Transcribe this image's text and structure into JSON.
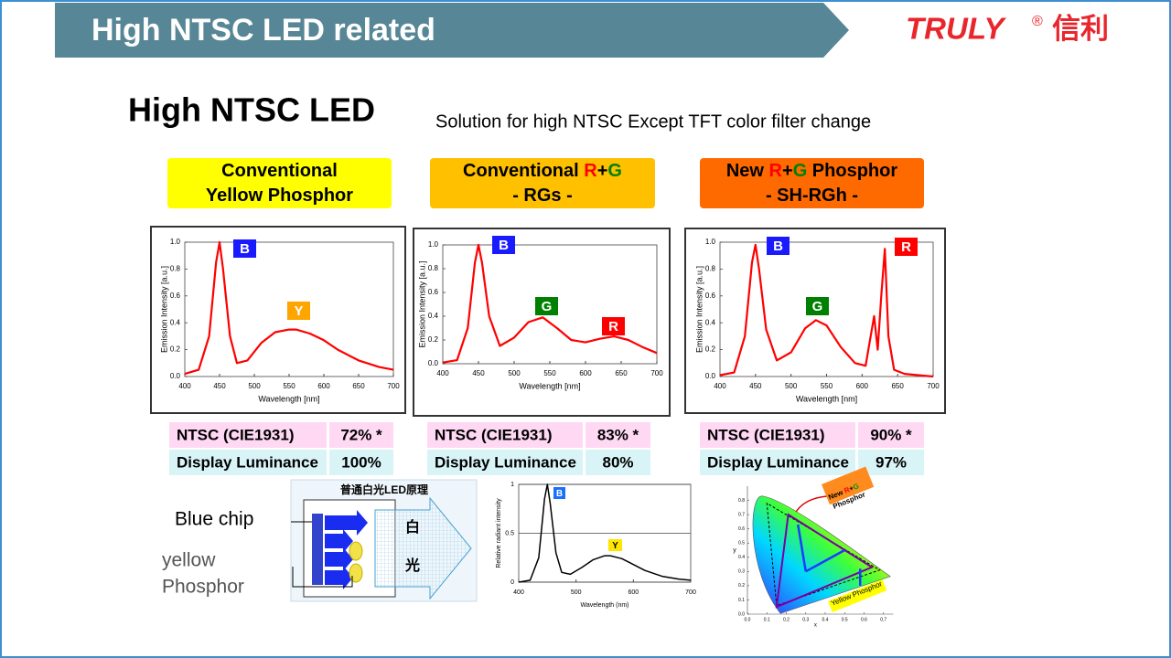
{
  "header": {
    "title": "High NTSC LED related",
    "logo": "TRULY",
    "logo_mark": "®",
    "logo_cn": "信利"
  },
  "heading": "High NTSC LED",
  "subtitle": "Solution for high NTSC Except TFT color filter change",
  "columns": [
    {
      "box_color": "#ffff00",
      "label": [
        [
          {
            "text": "Conventional",
            "color": "#000000"
          }
        ],
        [
          {
            "text": "Yellow Phosphor",
            "color": "#000000"
          }
        ]
      ],
      "chart": {
        "type": "line",
        "x_label": "Wavelength [nm]",
        "y_label": "Emission Intensity [a.u.]",
        "xlim": [
          400,
          700
        ],
        "xticks": [
          400,
          450,
          500,
          550,
          600,
          650,
          700
        ],
        "ylim": [
          0,
          1
        ],
        "yticks": [
          {
            "value": 0,
            "label": "0.0"
          },
          {
            "value": 0.2,
            "label": "0.2"
          },
          {
            "value": 0.4,
            "label": "0.4"
          },
          {
            "value": 0.6,
            "label": "0.6"
          },
          {
            "value": 0.8,
            "label": "0.8"
          },
          {
            "value": 1,
            "label": "1.0"
          }
        ],
        "color": "#ff0000",
        "x": [
          400,
          420,
          435,
          445,
          450,
          455,
          465,
          475,
          490,
          510,
          530,
          550,
          560,
          580,
          600,
          620,
          650,
          680,
          700
        ],
        "values": [
          0.02,
          0.05,
          0.3,
          0.85,
          1.0,
          0.8,
          0.3,
          0.1,
          0.12,
          0.25,
          0.33,
          0.35,
          0.35,
          0.32,
          0.27,
          0.2,
          0.12,
          0.07,
          0.05
        ],
        "annotations": [
          {
            "text": "B",
            "color": "#1a1aff"
          },
          {
            "text": "Y",
            "color": "#ffa500"
          }
        ]
      },
      "table": [
        [
          "NTSC (CIE1931)",
          "72% *"
        ],
        [
          "Display Luminance",
          "100%"
        ]
      ]
    },
    {
      "box_color": "#ffc000",
      "label": [
        [
          {
            "text": "Conventional ",
            "color": "#000000"
          },
          {
            "text": "R",
            "color": "#ff0000"
          },
          {
            "text": "+",
            "color": "#000000"
          },
          {
            "text": "G",
            "color": "#008000"
          }
        ],
        [
          {
            "text": "- RGs -",
            "color": "#000000"
          }
        ]
      ],
      "chart": {
        "type": "line",
        "x_label": "Wavelength [nm]",
        "y_label": "Emission Intensity [a.u.]",
        "xlim": [
          400,
          700
        ],
        "xticks": [
          400,
          450,
          500,
          550,
          600,
          650,
          700
        ],
        "ylim": [
          0,
          1
        ],
        "yticks": [
          {
            "value": 0,
            "label": "0.0"
          },
          {
            "value": 0.2,
            "label": "0.2"
          },
          {
            "value": 0.4,
            "label": "0.4"
          },
          {
            "value": 0.6,
            "label": "0.6"
          },
          {
            "value": 0.8,
            "label": "0.8"
          },
          {
            "value": 1,
            "label": "1.0"
          }
        ],
        "color": "#ff0000",
        "x": [
          400,
          420,
          435,
          445,
          450,
          455,
          465,
          480,
          500,
          520,
          540,
          560,
          580,
          600,
          620,
          640,
          660,
          680,
          700
        ],
        "values": [
          0.01,
          0.03,
          0.3,
          0.85,
          1.0,
          0.85,
          0.4,
          0.15,
          0.22,
          0.35,
          0.39,
          0.3,
          0.2,
          0.18,
          0.21,
          0.23,
          0.2,
          0.14,
          0.09
        ],
        "annotations": [
          {
            "text": "B",
            "color": "#1a1aff"
          },
          {
            "text": "G",
            "color": "#008000"
          },
          {
            "text": "R",
            "color": "#ff0000"
          }
        ]
      },
      "table": [
        [
          "NTSC (CIE1931)",
          "83% *"
        ],
        [
          "Display Luminance",
          "80%"
        ]
      ]
    },
    {
      "box_color": "#ff6a00",
      "label": [
        [
          {
            "text": "New ",
            "color": "#000000"
          },
          {
            "text": "R",
            "color": "#ff0000"
          },
          {
            "text": "+",
            "color": "#000000"
          },
          {
            "text": "G",
            "color": "#008000"
          },
          {
            "text": " Phosphor",
            "color": "#000000"
          }
        ],
        [
          {
            "text": "- SH-RGh -",
            "color": "#000000"
          }
        ]
      ],
      "chart": {
        "type": "line",
        "x_label": "Wavelength [nm]",
        "y_label": "Emission Intensity [a.u.]",
        "xlim": [
          400,
          700
        ],
        "xticks": [
          400,
          450,
          500,
          550,
          600,
          650,
          700
        ],
        "ylim": [
          0,
          1
        ],
        "yticks": [
          {
            "value": 0,
            "label": "0.0"
          },
          {
            "value": 0.2,
            "label": "0.2"
          },
          {
            "value": 0.4,
            "label": "0.4"
          },
          {
            "value": 0.6,
            "label": "0.6"
          },
          {
            "value": 0.8,
            "label": "0.8"
          },
          {
            "value": 1,
            "label": "1.0"
          }
        ],
        "color": "#ff0000",
        "x": [
          400,
          420,
          435,
          445,
          450,
          455,
          465,
          480,
          500,
          520,
          535,
          550,
          570,
          590,
          605,
          612,
          617,
          622,
          627,
          632,
          637,
          645,
          660,
          700
        ],
        "values": [
          0.01,
          0.03,
          0.3,
          0.85,
          0.98,
          0.8,
          0.35,
          0.12,
          0.18,
          0.36,
          0.42,
          0.38,
          0.22,
          0.1,
          0.08,
          0.3,
          0.45,
          0.2,
          0.6,
          0.95,
          0.3,
          0.05,
          0.02,
          0.0
        ],
        "annotations": [
          {
            "text": "B",
            "color": "#1a1aff"
          },
          {
            "text": "G",
            "color": "#008000"
          },
          {
            "text": "R",
            "color": "#ff0000"
          }
        ]
      },
      "table": [
        [
          "NTSC (CIE1931)",
          "90% *"
        ],
        [
          "Display Luminance",
          "97%"
        ]
      ]
    }
  ],
  "diagram": {
    "title": "普通白光LED原理",
    "chars": [
      "白",
      "光"
    ],
    "blue_chip": "Blue chip",
    "phosphor": [
      "yellow",
      "Phosphor"
    ]
  },
  "spectrum": {
    "type": "line",
    "x_label": "Wavelength (nm)",
    "y_label": "Relative radiant intensity",
    "xlim": [
      400,
      700
    ],
    "xticks": [
      400,
      500,
      600,
      700
    ],
    "ylim": [
      0,
      1
    ],
    "yticks": [
      0,
      0.5,
      1
    ],
    "color": "#000000",
    "x": [
      400,
      420,
      435,
      445,
      450,
      455,
      465,
      475,
      490,
      510,
      530,
      550,
      560,
      580,
      600,
      620,
      650,
      680,
      700
    ],
    "values": [
      0.0,
      0.02,
      0.25,
      0.85,
      1.0,
      0.8,
      0.3,
      0.1,
      0.08,
      0.15,
      0.23,
      0.27,
      0.27,
      0.24,
      0.18,
      0.12,
      0.06,
      0.03,
      0.02
    ],
    "annotations": [
      {
        "text": "B",
        "color": "#1a6fff"
      },
      {
        "text": "Y",
        "color": "#ffe600"
      }
    ]
  },
  "cie": {
    "x_label": "x",
    "y_label": "y",
    "xticks": [
      {
        "value": 0,
        "label": "0.0"
      },
      {
        "value": 0.1,
        "label": "0.1"
      },
      {
        "value": 0.2,
        "label": "0.2"
      },
      {
        "value": 0.3,
        "label": "0.3"
      },
      {
        "value": 0.4,
        "label": "0.4"
      },
      {
        "value": 0.5,
        "label": "0.5"
      },
      {
        "value": 0.6,
        "label": "0.6"
      },
      {
        "value": 0.7,
        "label": "0.7"
      }
    ],
    "yticks": [
      {
        "value": 0,
        "label": "0.0"
      },
      {
        "value": 0.1,
        "label": "0.1"
      },
      {
        "value": 0.2,
        "label": "0.2"
      },
      {
        "value": 0.3,
        "label": "0.3"
      },
      {
        "value": 0.4,
        "label": "0.4"
      },
      {
        "value": 0.5,
        "label": "0.5"
      },
      {
        "value": 0.6,
        "label": "0.6"
      },
      {
        "value": 0.7,
        "label": "0.7"
      },
      {
        "value": 0.8,
        "label": "0.8"
      }
    ],
    "new_label": [
      {
        "text": "New ",
        "color": "#000000"
      },
      {
        "text": "R",
        "color": "#ff0000"
      },
      {
        "text": "+",
        "color": "#000000"
      },
      {
        "text": "G",
        "color": "#00a000"
      }
    ],
    "new_label_2": "Phosphor",
    "yellow_label": "Yellow Phosphor"
  }
}
